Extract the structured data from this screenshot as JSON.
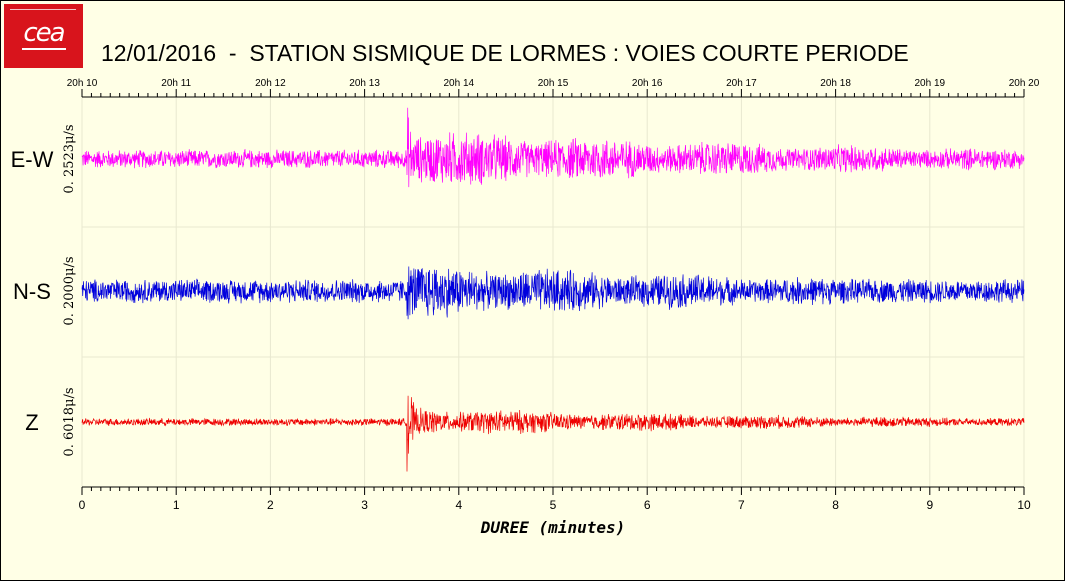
{
  "logo": {
    "text": "cea"
  },
  "chart_data": {
    "type": "line",
    "title": "12/01/2016  -  STATION SISMIQUE DE LORMES : VOIES COURTE PERIODE",
    "xlabel": "DUREE (minutes)",
    "xlim": [
      0,
      10
    ],
    "x_ticks": [
      "0",
      "1",
      "2",
      "3",
      "4",
      "5",
      "6",
      "7",
      "8",
      "9",
      "10"
    ],
    "top_axis_ticks": [
      "20h 10",
      "20h 11",
      "20h 12",
      "20h 13",
      "20h 14",
      "20h 15",
      "20h 16",
      "20h 17",
      "20h 18",
      "20h 19",
      "20h 20"
    ],
    "grid": true,
    "event_onset_minutes": 3.45,
    "series": [
      {
        "name": "E-W",
        "scale_label": "0. 2523μ/s",
        "color": "#ff00ff",
        "noise_amplitude": 0.15,
        "peak_amplitude": 1.0,
        "coda_amplitude": 0.45,
        "coda_decay_minutes": 6
      },
      {
        "name": "N-S",
        "scale_label": "0. 2000μ/s",
        "color": "#0000dd",
        "noise_amplitude": 0.25,
        "peak_amplitude": 0.75,
        "coda_amplitude": 0.55,
        "coda_decay_minutes": 6
      },
      {
        "name": "Z",
        "scale_label": "0. 6018μ/s",
        "color": "#ee0000",
        "noise_amplitude": 0.06,
        "peak_amplitude": 1.0,
        "coda_amplitude": 0.22,
        "coda_decay_minutes": 5
      }
    ]
  }
}
